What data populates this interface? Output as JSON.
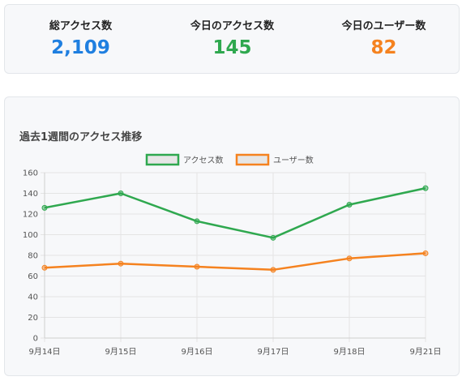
{
  "stats": [
    {
      "label": "総アクセス数",
      "value": "2,109",
      "color": "#1f7fe0"
    },
    {
      "label": "今日のアクセス数",
      "value": "145",
      "color": "#2fa84f"
    },
    {
      "label": "今日のユーザー数",
      "value": "82",
      "color": "#f5821f"
    }
  ],
  "chart_title": "過去1週間のアクセス推移",
  "chart_data": {
    "type": "line",
    "title": "過去1週間のアクセス推移",
    "x": [
      "9月14日",
      "9月15日",
      "9月16日",
      "9月17日",
      "9月18日",
      "9月21日"
    ],
    "ylim": [
      0,
      160
    ],
    "yticks": [
      0,
      20,
      40,
      60,
      80,
      100,
      120,
      140,
      160
    ],
    "grid": true,
    "legend": "top",
    "series": [
      {
        "name": "アクセス数",
        "color": "#2fa84f",
        "values": [
          126,
          140,
          113,
          97,
          129,
          145
        ]
      },
      {
        "name": "ユーザー数",
        "color": "#f5821f",
        "values": [
          68,
          72,
          69,
          66,
          77,
          82
        ]
      }
    ]
  }
}
